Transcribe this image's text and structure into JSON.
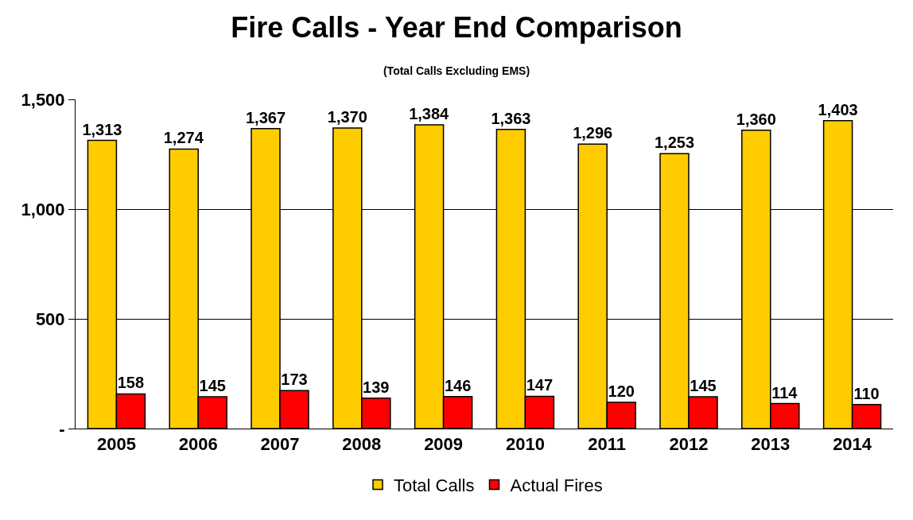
{
  "chart_data": {
    "type": "bar",
    "title": "Fire Calls - Year End Comparison",
    "subtitle": "(Total Calls Excluding EMS)",
    "categories": [
      "2005",
      "2006",
      "2007",
      "2008",
      "2009",
      "2010",
      "2011",
      "2012",
      "2013",
      "2014"
    ],
    "series": [
      {
        "name": "Total Calls",
        "color": "#ffcc00",
        "values": [
          1313,
          1274,
          1367,
          1370,
          1384,
          1363,
          1296,
          1253,
          1360,
          1403
        ],
        "value_labels": [
          "1,313",
          "1,274",
          "1,367",
          "1,370",
          "1,384",
          "1,363",
          "1,296",
          "1,253",
          "1,360",
          "1,403"
        ]
      },
      {
        "name": "Actual Fires",
        "color": "#ff0000",
        "values": [
          158,
          145,
          173,
          139,
          146,
          147,
          120,
          145,
          114,
          110
        ],
        "value_labels": [
          "158",
          "145",
          "173",
          "139",
          "146",
          "147",
          "120",
          "145",
          "114",
          "110"
        ]
      }
    ],
    "ylim": [
      0,
      1500
    ],
    "yticks": [
      {
        "value": 0,
        "label": "-"
      },
      {
        "value": 500,
        "label": "500"
      },
      {
        "value": 1000,
        "label": "1,000"
      },
      {
        "value": 1500,
        "label": "1,500"
      }
    ],
    "grid": "y",
    "legend": "bottom"
  }
}
